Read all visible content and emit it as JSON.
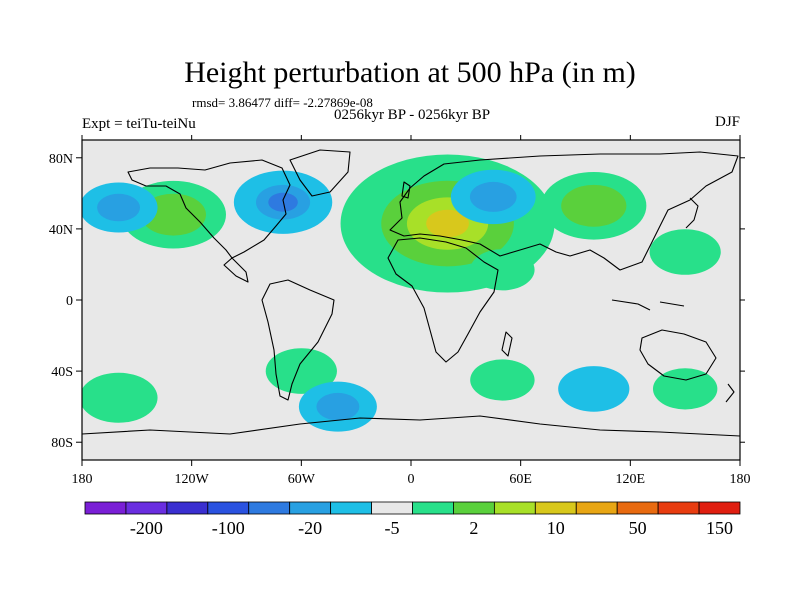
{
  "chart_data": {
    "type": "heatmap",
    "title": "Height perturbation at 500 hPa (in m)",
    "stats_text": "rmsd= 3.86477 diff= -2.27869e-08",
    "subtitle_center": "0256kyr BP - 0256kyr BP",
    "left_label": "Expt = teiTu-teiNu",
    "right_label": "DJF",
    "x_range": [
      -180,
      180
    ],
    "y_range": [
      -90,
      90
    ],
    "x_ticks": [
      {
        "value": -180,
        "label": "180"
      },
      {
        "value": -120,
        "label": "120W"
      },
      {
        "value": -60,
        "label": "60W"
      },
      {
        "value": 0,
        "label": "0"
      },
      {
        "value": 60,
        "label": "60E"
      },
      {
        "value": 120,
        "label": "120E"
      },
      {
        "value": 180,
        "label": "180"
      }
    ],
    "y_ticks": [
      {
        "value": 80,
        "label": "80N"
      },
      {
        "value": 40,
        "label": "40N"
      },
      {
        "value": 0,
        "label": "0"
      },
      {
        "value": -40,
        "label": "40S"
      },
      {
        "value": -80,
        "label": "80S"
      }
    ],
    "colorbar": {
      "colors": [
        "#7a1fd6",
        "#6a2ee0",
        "#3a2fd0",
        "#2a52e0",
        "#2e7ae0",
        "#28a0e2",
        "#1ebfe6",
        "#e8e8e8",
        "#28e08a",
        "#5ad03c",
        "#a8e028",
        "#d8c81c",
        "#e8a614",
        "#e86a10",
        "#e83c10",
        "#e01e10"
      ],
      "labels": [
        "-200",
        "-100",
        "-20",
        "-5",
        "2",
        "10",
        "50",
        "150"
      ]
    },
    "anomalies": [
      {
        "lon": 20,
        "lat": 43,
        "value": 25,
        "name": "europe-high"
      },
      {
        "lon": -130,
        "lat": 48,
        "value": 9,
        "name": "n-pacific-high"
      },
      {
        "lon": 100,
        "lat": 53,
        "value": 9,
        "name": "siberia-high"
      },
      {
        "lon": 150,
        "lat": 27,
        "value": 4,
        "name": "w-pacific-high"
      },
      {
        "lon": 50,
        "lat": 17,
        "value": 3,
        "name": "arabia-high"
      },
      {
        "lon": -60,
        "lat": -40,
        "value": 4,
        "name": "s-america-high"
      },
      {
        "lon": -160,
        "lat": -55,
        "value": 5,
        "name": "s-pacific-high"
      },
      {
        "lon": 50,
        "lat": -45,
        "value": 3,
        "name": "s-indian-high"
      },
      {
        "lon": 150,
        "lat": -50,
        "value": 3,
        "name": "tasman-high"
      },
      {
        "lon": -70,
        "lat": 55,
        "value": -8,
        "name": "n-america-low"
      },
      {
        "lon": 45,
        "lat": 58,
        "value": -6,
        "name": "ural-low"
      },
      {
        "lon": -160,
        "lat": 52,
        "value": -5,
        "name": "aleutian-low"
      },
      {
        "lon": -40,
        "lat": -60,
        "value": -5,
        "name": "s-atlantic-low"
      },
      {
        "lon": 100,
        "lat": -50,
        "value": -4,
        "name": "s-indian-low"
      }
    ]
  }
}
